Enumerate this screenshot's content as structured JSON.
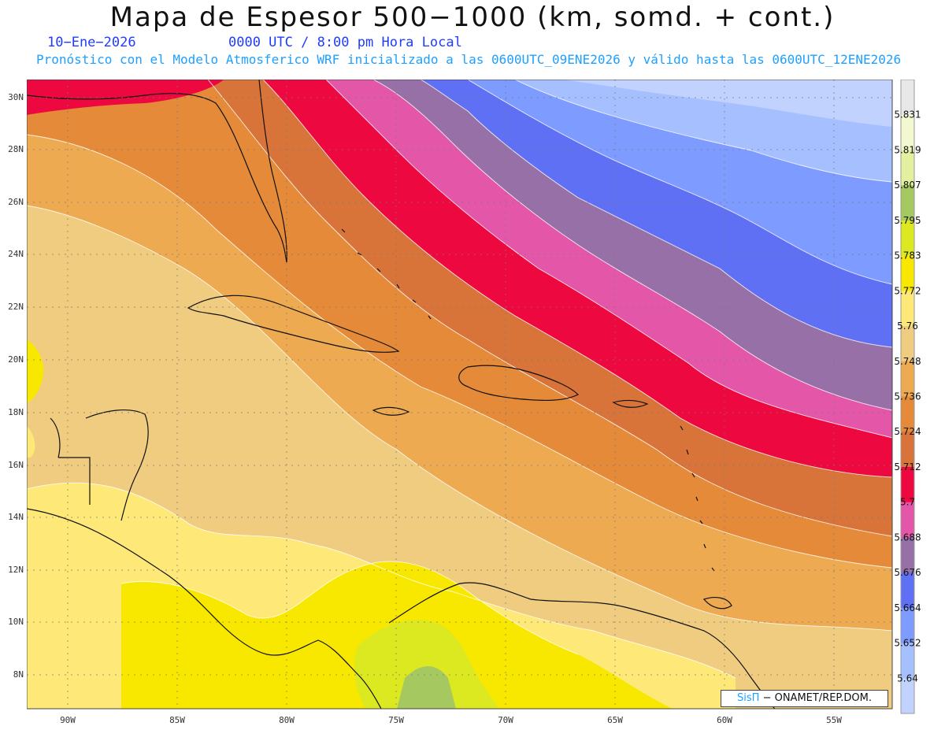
{
  "header": {
    "title": "Mapa de Espesor 500−1000 (km, somd. + cont.)",
    "date": "10−Ene−2026",
    "time": "0000 UTC / 8:00 pm Hora Local",
    "model_line": "Pronóstico con el Modelo Atmosferico WRF inicializado a las 0600UTC_09ENE2026 y válido hasta las  0600UTC_12ENE2026"
  },
  "map": {
    "lon_labels": [
      "90W",
      "85W",
      "80W",
      "75W",
      "70W",
      "65W",
      "60W",
      "55W"
    ],
    "lat_labels": [
      "30N",
      "28N",
      "26N",
      "24N",
      "22N",
      "20N",
      "18N",
      "16N",
      "14N",
      "12N",
      "10N",
      "8N"
    ],
    "grid": true
  },
  "colorbar": {
    "labels": [
      "5.831",
      "5.819",
      "5.807",
      "5.795",
      "5.783",
      "5.772",
      "5.76",
      "5.748",
      "5.736",
      "5.724",
      "5.712",
      "5.7",
      "5.688",
      "5.676",
      "5.664",
      "5.652",
      "5.64"
    ],
    "colors": [
      "#e8e8e8",
      "#f4f8d0",
      "#e2f0a0",
      "#a6c860",
      "#dce820",
      "#f8e800",
      "#fde878",
      "#f0cc80",
      "#eeaa50",
      "#e48a38",
      "#d8743a",
      "#ee0840",
      "#e456a8",
      "#9870a8",
      "#6070f4",
      "#7e9cff",
      "#a6c0ff",
      "#c2d2ff"
    ]
  },
  "credit": {
    "sis": "SisΠ",
    "rest": "− ONAMET/REP.DOM."
  }
}
